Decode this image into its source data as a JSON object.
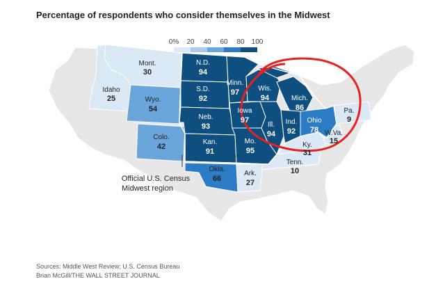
{
  "title": "Percentage of respondents who consider themselves in the Midwest",
  "legend": {
    "ticks": [
      "0%",
      "20",
      "40",
      "60",
      "80",
      "100"
    ],
    "colors": [
      "#dbe9f6",
      "#a9cbea",
      "#6aa6dc",
      "#2b7cc4",
      "#0e4f80"
    ]
  },
  "annotation": {
    "line1": "Official U.S. Census",
    "line2": "Midwest region"
  },
  "states": [
    {
      "abbr": "Mont.",
      "value": "30"
    },
    {
      "abbr": "Idaho",
      "value": "25"
    },
    {
      "abbr": "Wyo.",
      "value": "54"
    },
    {
      "abbr": "Colo.",
      "value": "42"
    },
    {
      "abbr": "N.D.",
      "value": "94"
    },
    {
      "abbr": "S.D.",
      "value": "92"
    },
    {
      "abbr": "Neb.",
      "value": "93"
    },
    {
      "abbr": "Kan.",
      "value": "91"
    },
    {
      "abbr": "Minn.",
      "value": "97"
    },
    {
      "abbr": "Iowa",
      "value": "97"
    },
    {
      "abbr": "Mo.",
      "value": "95"
    },
    {
      "abbr": "Wis.",
      "value": "94"
    },
    {
      "abbr": "Ill.",
      "value": "94"
    },
    {
      "abbr": "Mich.",
      "value": "86"
    },
    {
      "abbr": "Ind.",
      "value": "92"
    },
    {
      "abbr": "Ohio",
      "value": "78"
    },
    {
      "abbr": "Okla.",
      "value": "66"
    },
    {
      "abbr": "Ark.",
      "value": "27"
    },
    {
      "abbr": "Tenn.",
      "value": "10"
    },
    {
      "abbr": "Ky.",
      "value": "31"
    },
    {
      "abbr": "W.Va.",
      "value": "15"
    },
    {
      "abbr": "Pa.",
      "value": "9"
    }
  ],
  "sources": {
    "line1": "Sources: Middle West Review; U.S. Census Bureau",
    "line2": "Brian McGill/THE WALL STREET JOURNAL"
  }
}
